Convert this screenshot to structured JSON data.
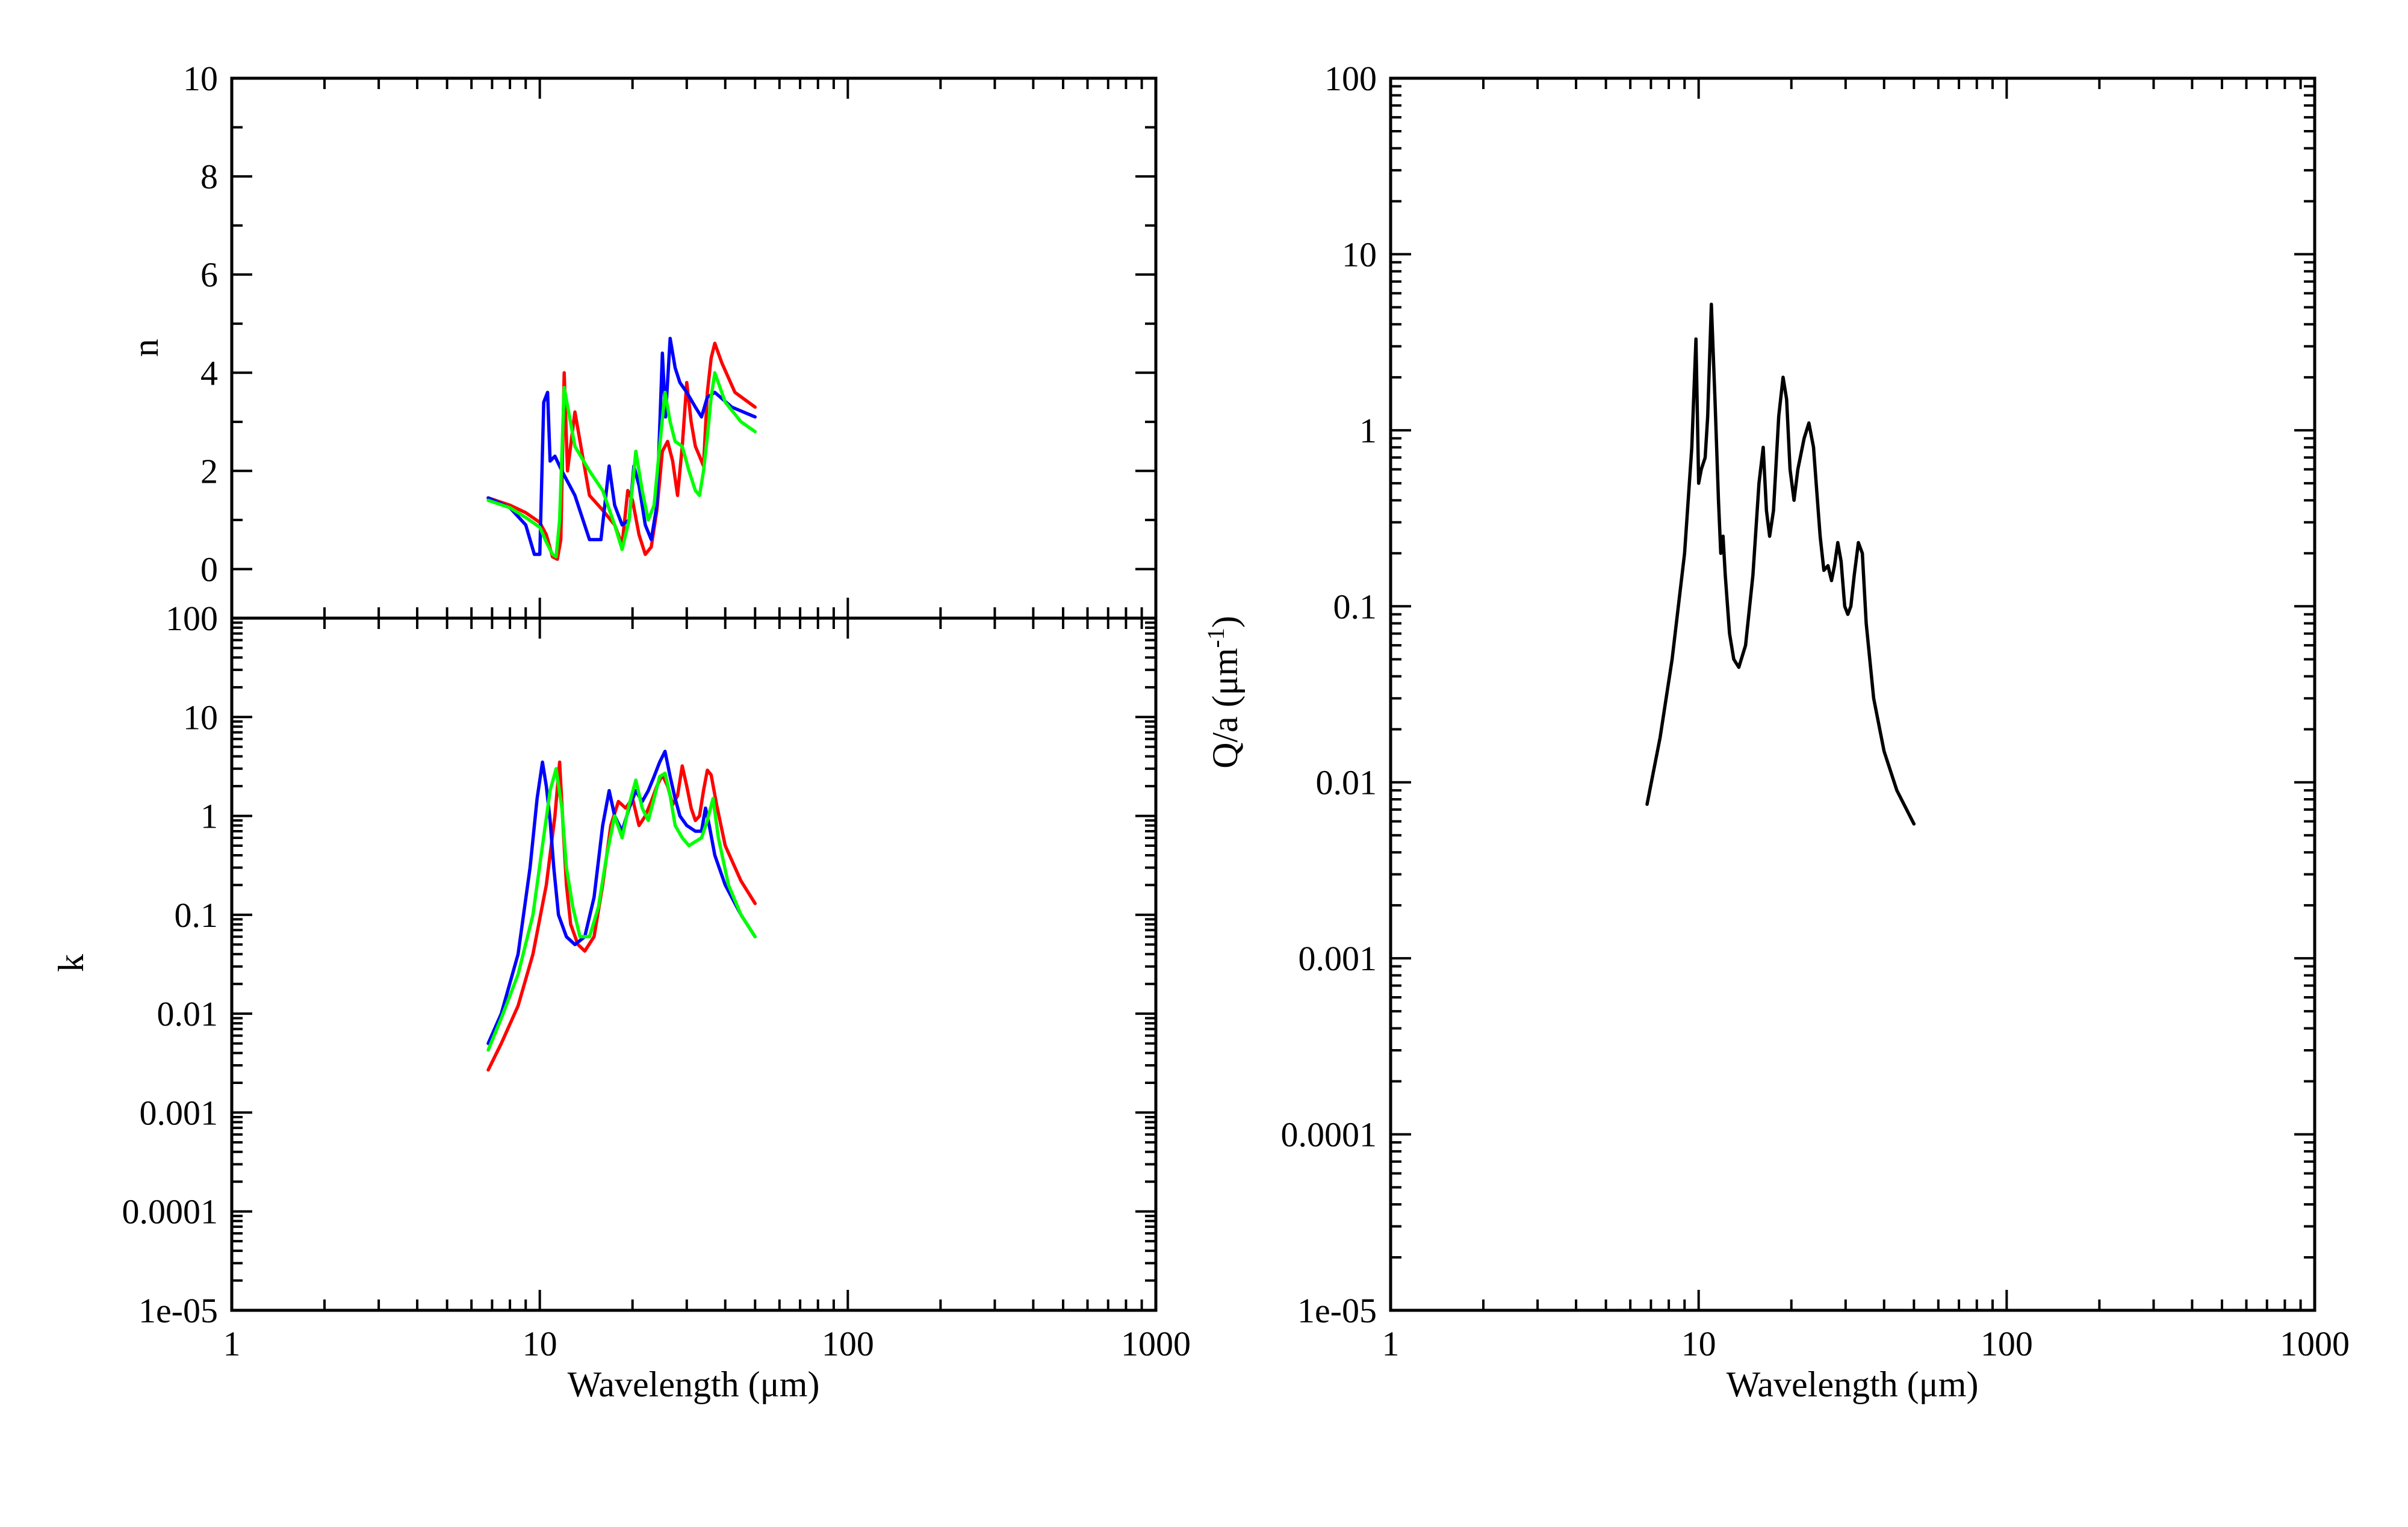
{
  "chart_data": [
    {
      "type": "line",
      "panel": "n",
      "xlabel": "Wavelength (μm)",
      "ylabel": "n",
      "xscale": "log",
      "xlim": [
        1,
        1000
      ],
      "ylim": [
        -1,
        10
      ],
      "xticks": [
        "1",
        "10",
        "100",
        "1000"
      ],
      "yticks": [
        "0",
        "2",
        "4",
        "6",
        "8",
        "10"
      ],
      "series": [
        {
          "color": "#ff0000",
          "x": [
            6.8,
            8.0,
            9.0,
            10.0,
            10.5,
            11.0,
            11.4,
            11.7,
            12.0,
            12.3,
            13.0,
            14.5,
            16.0,
            17.5,
            18.5,
            19.3,
            20.0,
            21.0,
            22.0,
            23.0,
            24.0,
            25.0,
            26.0,
            27.0,
            28.0,
            29.0,
            30.0,
            31.0,
            32.0,
            33.0,
            34.0,
            35.0,
            36.0,
            37.0,
            39.0,
            43.0,
            50.0
          ],
          "y": [
            1.45,
            1.3,
            1.15,
            0.95,
            0.7,
            0.25,
            0.2,
            0.6,
            4.0,
            2.0,
            3.2,
            1.5,
            1.2,
            0.9,
            0.5,
            1.6,
            1.4,
            0.7,
            0.3,
            0.45,
            1.2,
            2.4,
            2.6,
            2.2,
            1.5,
            2.5,
            3.8,
            3.0,
            2.5,
            2.3,
            2.1,
            3.6,
            4.3,
            4.6,
            4.2,
            3.6,
            3.3
          ]
        },
        {
          "color": "#0000ff",
          "x": [
            6.8,
            8.0,
            9.0,
            9.6,
            10.0,
            10.3,
            10.6,
            10.8,
            11.2,
            11.8,
            13.0,
            14.5,
            15.8,
            16.8,
            17.5,
            18.5,
            19.5,
            20.2,
            21.0,
            22.0,
            23.0,
            24.0,
            25.0,
            25.6,
            26.5,
            27.5,
            28.5,
            30.0,
            32.0,
            33.5,
            35.0,
            37.0,
            42.0,
            50.0
          ],
          "y": [
            1.45,
            1.25,
            0.9,
            0.3,
            0.3,
            3.4,
            3.6,
            2.2,
            2.3,
            2.0,
            1.5,
            0.6,
            0.6,
            2.1,
            1.3,
            0.9,
            1.0,
            2.1,
            1.7,
            0.9,
            0.6,
            1.3,
            4.4,
            3.1,
            4.7,
            4.1,
            3.8,
            3.6,
            3.3,
            3.1,
            3.5,
            3.6,
            3.3,
            3.1
          ]
        },
        {
          "color": "#00ff00",
          "x": [
            6.8,
            8.0,
            9.0,
            10.0,
            10.5,
            11.0,
            11.3,
            11.6,
            12.0,
            13.0,
            14.5,
            16.0,
            17.5,
            18.5,
            19.5,
            20.5,
            21.5,
            22.5,
            23.5,
            24.5,
            25.5,
            26.5,
            27.5,
            29.0,
            30.5,
            32.0,
            33.0,
            34.0,
            35.0,
            36.0,
            37.0,
            40.0,
            45.0,
            50.0
          ],
          "y": [
            1.4,
            1.25,
            1.05,
            0.85,
            0.55,
            0.3,
            0.25,
            1.0,
            3.7,
            2.5,
            2.0,
            1.6,
            0.9,
            0.4,
            1.0,
            2.4,
            1.6,
            1.0,
            1.3,
            2.5,
            3.6,
            3.0,
            2.6,
            2.5,
            2.0,
            1.6,
            1.5,
            2.0,
            2.7,
            3.5,
            4.0,
            3.4,
            3.0,
            2.8
          ]
        }
      ]
    },
    {
      "type": "line",
      "panel": "k",
      "xlabel": "Wavelength (μm)",
      "ylabel": "k",
      "xscale": "log",
      "yscale": "log",
      "xlim": [
        1,
        1000
      ],
      "ylim": [
        1e-05,
        100
      ],
      "xticks": [
        "1",
        "10",
        "100",
        "1000"
      ],
      "yticks": [
        "1e-05",
        "0.0001",
        "0.001",
        "0.01",
        "0.1",
        "1",
        "10",
        "100"
      ],
      "series": [
        {
          "color": "#ff0000",
          "x": [
            6.8,
            7.5,
            8.5,
            9.5,
            10.5,
            11.2,
            11.6,
            11.9,
            12.2,
            12.6,
            13.3,
            14.0,
            15.0,
            16.0,
            17.0,
            18.0,
            19.0,
            20.0,
            21.0,
            22.0,
            23.0,
            24.0,
            25.0,
            26.0,
            27.0,
            28.0,
            29.0,
            30.0,
            31.0,
            32.0,
            33.0,
            34.0,
            35.0,
            36.0,
            37.5,
            40.0,
            45.0,
            50.0
          ],
          "y": [
            0.0027,
            0.005,
            0.012,
            0.04,
            0.2,
            1.0,
            3.5,
            0.8,
            0.2,
            0.08,
            0.05,
            0.043,
            0.06,
            0.2,
            0.8,
            1.4,
            1.2,
            1.5,
            0.8,
            1.0,
            1.4,
            2.0,
            2.6,
            2.0,
            1.3,
            1.6,
            3.2,
            2.0,
            1.2,
            0.9,
            1.0,
            1.8,
            2.9,
            2.6,
            1.3,
            0.5,
            0.22,
            0.13
          ]
        },
        {
          "color": "#0000ff",
          "x": [
            6.8,
            7.5,
            8.5,
            9.3,
            9.8,
            10.2,
            10.5,
            10.8,
            11.1,
            11.5,
            12.2,
            13.0,
            14.0,
            15.0,
            16.0,
            16.8,
            17.5,
            18.5,
            19.5,
            20.5,
            21.5,
            22.5,
            23.5,
            24.5,
            25.5,
            26.5,
            27.5,
            28.5,
            30.0,
            32.0,
            33.5,
            34.5,
            35.5,
            37.0,
            40.0,
            45.0,
            50.0
          ],
          "y": [
            0.005,
            0.01,
            0.04,
            0.3,
            1.5,
            3.5,
            2.0,
            0.9,
            0.3,
            0.1,
            0.06,
            0.05,
            0.06,
            0.15,
            0.8,
            1.8,
            1.0,
            0.7,
            1.2,
            1.8,
            1.4,
            1.8,
            2.5,
            3.5,
            4.5,
            2.5,
            1.5,
            1.0,
            0.8,
            0.7,
            0.7,
            1.2,
            0.8,
            0.4,
            0.2,
            0.1,
            0.06
          ]
        },
        {
          "color": "#00ff00",
          "x": [
            6.8,
            7.5,
            8.5,
            9.5,
            10.2,
            10.8,
            11.3,
            11.8,
            12.2,
            12.8,
            13.5,
            14.5,
            15.5,
            16.5,
            17.5,
            18.5,
            19.5,
            20.5,
            21.5,
            22.5,
            23.5,
            24.5,
            25.5,
            26.5,
            27.5,
            29.0,
            30.5,
            32.0,
            33.5,
            35.0,
            36.5,
            38.0,
            41.0,
            45.0,
            50.0
          ],
          "y": [
            0.0043,
            0.009,
            0.025,
            0.1,
            0.5,
            1.8,
            3.0,
            1.2,
            0.3,
            0.12,
            0.06,
            0.06,
            0.12,
            0.4,
            1.0,
            0.6,
            1.3,
            2.3,
            1.2,
            0.9,
            1.5,
            2.5,
            2.7,
            1.6,
            0.8,
            0.6,
            0.5,
            0.55,
            0.6,
            0.9,
            1.5,
            0.6,
            0.2,
            0.1,
            0.06
          ]
        }
      ]
    },
    {
      "type": "line",
      "panel": "Q/a",
      "xlabel": "Wavelength (μm)",
      "ylabel": "Q/a (μm",
      "ylabel_superscript": "-1",
      "ylabel_suffix": ")",
      "xscale": "log",
      "yscale": "log",
      "xlim": [
        1,
        1000
      ],
      "ylim": [
        1e-05,
        100
      ],
      "xticks": [
        "1",
        "10",
        "100",
        "1000"
      ],
      "yticks": [
        "1e-05",
        "0.0001",
        "0.001",
        "0.01",
        "0.1",
        "1",
        "10",
        "100"
      ],
      "series": [
        {
          "color": "#000000",
          "x": [
            6.8,
            7.5,
            8.2,
            9.0,
            9.5,
            9.8,
            10.0,
            10.2,
            10.5,
            10.7,
            11.0,
            11.3,
            11.6,
            11.8,
            12.0,
            12.2,
            12.6,
            13.0,
            13.5,
            14.2,
            15.0,
            15.7,
            16.2,
            16.6,
            17.0,
            17.5,
            18.2,
            18.8,
            19.3,
            19.8,
            20.4,
            21.0,
            22.0,
            22.8,
            23.6,
            24.3,
            24.8,
            25.5,
            26.3,
            27.0,
            27.6,
            28.3,
            29.0,
            29.8,
            30.5,
            31.2,
            32.0,
            33.0,
            34.0,
            35.0,
            37.0,
            40.0,
            44.0,
            50.0
          ],
          "y": [
            0.0075,
            0.018,
            0.05,
            0.2,
            0.8,
            3.3,
            0.5,
            0.6,
            0.7,
            1.2,
            5.2,
            1.5,
            0.4,
            0.2,
            0.25,
            0.15,
            0.07,
            0.05,
            0.045,
            0.06,
            0.15,
            0.5,
            0.8,
            0.35,
            0.25,
            0.35,
            1.2,
            2.0,
            1.5,
            0.6,
            0.4,
            0.6,
            0.9,
            1.1,
            0.8,
            0.4,
            0.25,
            0.16,
            0.17,
            0.14,
            0.17,
            0.23,
            0.18,
            0.1,
            0.09,
            0.1,
            0.15,
            0.23,
            0.2,
            0.08,
            0.03,
            0.015,
            0.009,
            0.0058
          ]
        }
      ]
    }
  ]
}
